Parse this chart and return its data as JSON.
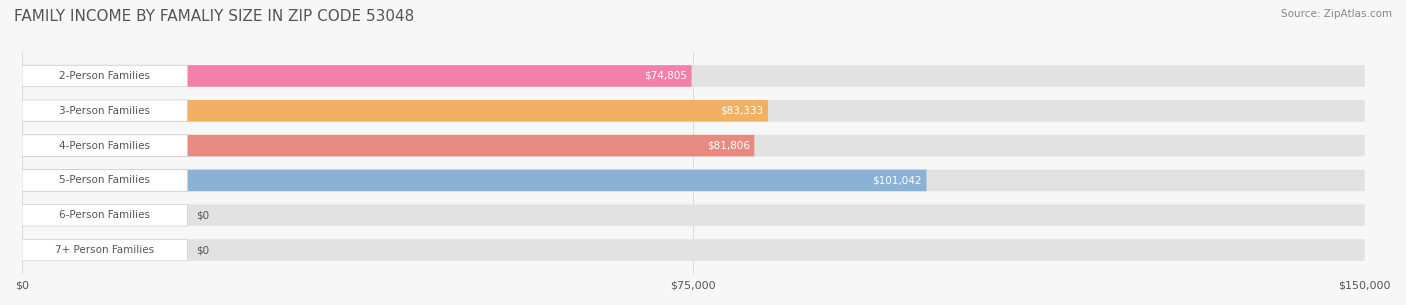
{
  "title": "FAMILY INCOME BY FAMALIY SIZE IN ZIP CODE 53048",
  "source": "Source: ZipAtlas.com",
  "categories": [
    "2-Person Families",
    "3-Person Families",
    "4-Person Families",
    "5-Person Families",
    "6-Person Families",
    "7+ Person Families"
  ],
  "values": [
    74805,
    83333,
    81806,
    101042,
    0,
    0
  ],
  "bar_colors": [
    "#f76fa0",
    "#f5a84e",
    "#e87b6e",
    "#7baad4",
    "#c3a8d1",
    "#7ecfc4"
  ],
  "label_values": [
    "$74,805",
    "$83,333",
    "$81,806",
    "$101,042",
    "$0",
    "$0"
  ],
  "xlim": [
    0,
    150000
  ],
  "xticks": [
    0,
    75000,
    150000
  ],
  "xticklabels": [
    "$0",
    "$75,000",
    "$150,000"
  ],
  "bg_color": "#f0f0f0",
  "bar_bg_color": "#e8e8e8",
  "label_inside_color": "#ffffff",
  "label_outside_color": "#555555",
  "title_color": "#555555",
  "title_fontsize": 11,
  "bar_height": 0.62,
  "figsize": [
    14.06,
    3.05
  ],
  "dpi": 100
}
